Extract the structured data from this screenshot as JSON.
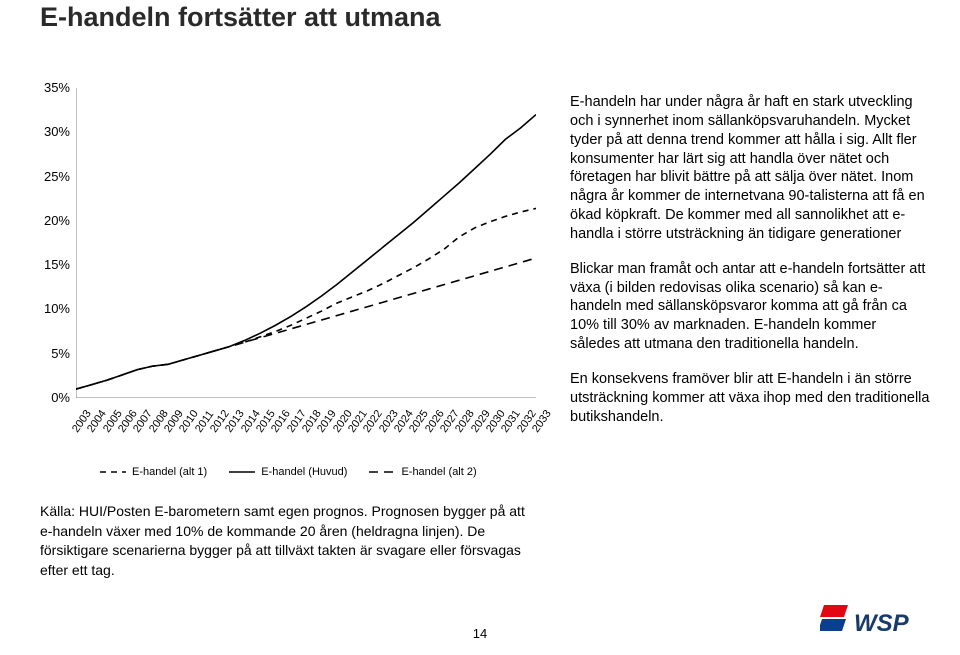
{
  "title": "E-handeln fortsätter att utmana",
  "chart": {
    "type": "line",
    "background_color": "#ffffff",
    "axis_color": "#808080",
    "text_color": "#000000",
    "label_fontsize": 13,
    "xlabel_fontsize": 11,
    "xlabel_rotation_deg": -55,
    "xlim": [
      2003,
      2033
    ],
    "ylim": [
      0,
      35
    ],
    "ytick_step": 5,
    "yticks": [
      "0%",
      "5%",
      "10%",
      "15%",
      "20%",
      "25%",
      "30%",
      "35%"
    ],
    "xticks": [
      "2003",
      "2004",
      "2005",
      "2006",
      "2007",
      "2008",
      "2009",
      "2010",
      "2011",
      "2012",
      "2013",
      "2014",
      "2015",
      "2016",
      "2017",
      "2018",
      "2019",
      "2020",
      "2021",
      "2022",
      "2023",
      "2024",
      "2025",
      "2026",
      "2027",
      "2028",
      "2029",
      "2030",
      "2031",
      "2032",
      "2033"
    ],
    "line_width": 1.6,
    "series": [
      {
        "name": "E-handel (alt 1)",
        "color": "#000000",
        "dash": "6,5",
        "label": "E-handel (alt 1)",
        "data": [
          [
            2003,
            1.0
          ],
          [
            2004,
            1.5
          ],
          [
            2005,
            2.0
          ],
          [
            2006,
            2.6
          ],
          [
            2007,
            3.2
          ],
          [
            2008,
            3.6
          ],
          [
            2009,
            3.8
          ],
          [
            2010,
            4.3
          ],
          [
            2011,
            4.8
          ],
          [
            2012,
            5.3
          ],
          [
            2013,
            5.8
          ],
          [
            2014,
            6.3
          ],
          [
            2015,
            6.9
          ],
          [
            2016,
            7.5
          ],
          [
            2017,
            8.2
          ],
          [
            2018,
            9.0
          ],
          [
            2019,
            9.8
          ],
          [
            2020,
            10.7
          ],
          [
            2021,
            11.4
          ],
          [
            2022,
            12.1
          ],
          [
            2023,
            12.9
          ],
          [
            2024,
            13.8
          ],
          [
            2025,
            14.7
          ],
          [
            2026,
            15.7
          ],
          [
            2027,
            16.8
          ],
          [
            2028,
            18.2
          ],
          [
            2029,
            19.2
          ],
          [
            2030,
            19.9
          ],
          [
            2031,
            20.5
          ],
          [
            2032,
            21.0
          ],
          [
            2033,
            21.4
          ]
        ]
      },
      {
        "name": "E-handel (Huvud)",
        "color": "#000000",
        "dash": "none",
        "label": "E-handel (Huvud)",
        "data": [
          [
            2003,
            1.0
          ],
          [
            2004,
            1.5
          ],
          [
            2005,
            2.0
          ],
          [
            2006,
            2.6
          ],
          [
            2007,
            3.2
          ],
          [
            2008,
            3.6
          ],
          [
            2009,
            3.8
          ],
          [
            2010,
            4.3
          ],
          [
            2011,
            4.8
          ],
          [
            2012,
            5.3
          ],
          [
            2013,
            5.8
          ],
          [
            2014,
            6.5
          ],
          [
            2015,
            7.3
          ],
          [
            2016,
            8.2
          ],
          [
            2017,
            9.2
          ],
          [
            2018,
            10.3
          ],
          [
            2019,
            11.5
          ],
          [
            2020,
            12.8
          ],
          [
            2021,
            14.2
          ],
          [
            2022,
            15.6
          ],
          [
            2023,
            17.0
          ],
          [
            2024,
            18.4
          ],
          [
            2025,
            19.8
          ],
          [
            2026,
            21.3
          ],
          [
            2027,
            22.8
          ],
          [
            2028,
            24.3
          ],
          [
            2029,
            25.9
          ],
          [
            2030,
            27.5
          ],
          [
            2031,
            29.2
          ],
          [
            2032,
            30.5
          ],
          [
            2033,
            32.0
          ]
        ]
      },
      {
        "name": "E-handel (alt 2)",
        "color": "#000000",
        "dash": "9,6",
        "label": "E-handel (alt 2)",
        "data": [
          [
            2003,
            1.0
          ],
          [
            2004,
            1.5
          ],
          [
            2005,
            2.0
          ],
          [
            2006,
            2.6
          ],
          [
            2007,
            3.2
          ],
          [
            2008,
            3.6
          ],
          [
            2009,
            3.8
          ],
          [
            2010,
            4.3
          ],
          [
            2011,
            4.8
          ],
          [
            2012,
            5.3
          ],
          [
            2013,
            5.8
          ],
          [
            2014,
            6.3
          ],
          [
            2015,
            6.8
          ],
          [
            2016,
            7.3
          ],
          [
            2017,
            7.8
          ],
          [
            2018,
            8.3
          ],
          [
            2019,
            8.8
          ],
          [
            2020,
            9.3
          ],
          [
            2021,
            9.8
          ],
          [
            2022,
            10.3
          ],
          [
            2023,
            10.8
          ],
          [
            2024,
            11.3
          ],
          [
            2025,
            11.8
          ],
          [
            2026,
            12.3
          ],
          [
            2027,
            12.8
          ],
          [
            2028,
            13.3
          ],
          [
            2029,
            13.8
          ],
          [
            2030,
            14.3
          ],
          [
            2031,
            14.8
          ],
          [
            2032,
            15.3
          ],
          [
            2033,
            15.8
          ]
        ]
      }
    ],
    "legend": {
      "items": [
        "E-handel (alt 1)",
        "E-handel (Huvud)",
        "E-handel (alt 2)"
      ],
      "fontsize": 11
    }
  },
  "source_note": "Källa: HUI/Posten E-barometern samt egen prognos. Prognosen bygger på att e-handeln växer med 10% de kommande 20 åren (heldragna linjen). De försiktigare scenarierna bygger på att tillväxt takten är svagare eller försvagas efter ett tag.",
  "paragraphs": [
    "E-handeln har under några år haft en stark utveckling och i synnerhet inom sällanköpsvaruhandeln. Mycket tyder på att denna trend kommer att hålla i sig. Allt fler konsumenter har lärt sig att handla över nätet och företagen har blivit bättre på att sälja över nätet. Inom några år kommer de internetvana 90-talisterna att få en ökad köpkraft. De kommer med all sannolikhet att e-handla i större utsträckning än tidigare generationer",
    "Blickar man framåt och antar att e-handeln fortsätter att växa (i bilden redovisas olika scenario) så kan e-handeln med sällansköpsvaror komma att gå från ca 10% till 30% av marknaden. E-handeln kommer således att utmana den traditionella handeln.",
    "En konsekvens framöver blir att E-handeln i än större utsträckning kommer att växa ihop med den traditionella butikshandeln."
  ],
  "page_number": "14",
  "logo": {
    "text": "WSP",
    "text_color": "#193b69",
    "flag_colors": [
      "#e30613",
      "#0a3e8e"
    ],
    "fontsize": 24,
    "italic": true,
    "weight": "bold"
  }
}
